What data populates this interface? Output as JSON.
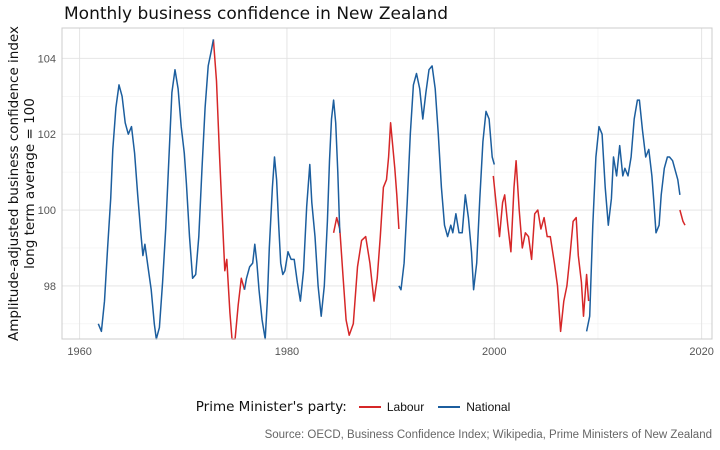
{
  "chart_data": {
    "type": "line",
    "title": "Monthly business confidence in New Zealand",
    "ylabel_lines": [
      "Amplitude-adjusted business confidence index",
      "long term average = 100"
    ],
    "xlabel": "",
    "xlim": [
      1958.3,
      2021.0
    ],
    "ylim": [
      96.6,
      104.8
    ],
    "x_ticks": [
      1960,
      1980,
      2000,
      2020
    ],
    "y_ticks": [
      98,
      100,
      102,
      104
    ],
    "grid": true,
    "legend": {
      "title": "Prime Minister's party:",
      "position": "bottom"
    },
    "caption": "Source: OECD, Business Confidence Index; Wikipedia, Prime Ministers of New Zealand",
    "series": [
      {
        "name": "Labour",
        "color": "#d62728",
        "segments": [
          [
            [
              1972.9,
              104.5
            ],
            [
              1973.2,
              103.4
            ],
            [
              1973.5,
              101.4
            ],
            [
              1973.8,
              99.6
            ],
            [
              1974.0,
              98.4
            ],
            [
              1974.2,
              98.7
            ],
            [
              1974.3,
              98.2
            ],
            [
              1974.5,
              97.3
            ],
            [
              1974.7,
              96.6
            ],
            [
              1975.0,
              96.6
            ],
            [
              1975.3,
              97.5
            ],
            [
              1975.6,
              98.2
            ],
            [
              1975.9,
              97.9
            ]
          ],
          [
            [
              1984.5,
              99.4
            ],
            [
              1984.8,
              99.8
            ],
            [
              1985.1,
              99.5
            ],
            [
              1985.4,
              98.3
            ],
            [
              1985.7,
              97.1
            ],
            [
              1986.0,
              96.7
            ],
            [
              1986.4,
              97.0
            ],
            [
              1986.8,
              98.5
            ],
            [
              1987.2,
              99.2
            ],
            [
              1987.6,
              99.3
            ],
            [
              1988.0,
              98.6
            ],
            [
              1988.4,
              97.6
            ],
            [
              1988.7,
              98.2
            ],
            [
              1989.0,
              99.3
            ],
            [
              1989.3,
              100.6
            ],
            [
              1989.6,
              100.8
            ],
            [
              1989.8,
              101.4
            ],
            [
              1990.0,
              102.3
            ],
            [
              1990.2,
              101.7
            ],
            [
              1990.4,
              101.1
            ],
            [
              1990.6,
              100.4
            ],
            [
              1990.8,
              99.5
            ]
          ],
          [
            [
              1999.9,
              100.9
            ],
            [
              2000.2,
              100.1
            ],
            [
              2000.5,
              99.3
            ],
            [
              2000.8,
              100.2
            ],
            [
              2001.0,
              100.4
            ],
            [
              2001.3,
              99.6
            ],
            [
              2001.6,
              98.9
            ],
            [
              2001.9,
              100.6
            ],
            [
              2002.1,
              101.3
            ],
            [
              2002.4,
              100.0
            ],
            [
              2002.7,
              99.0
            ],
            [
              2003.0,
              99.4
            ],
            [
              2003.3,
              99.3
            ],
            [
              2003.6,
              98.7
            ],
            [
              2003.9,
              99.9
            ],
            [
              2004.2,
              100.0
            ],
            [
              2004.5,
              99.5
            ],
            [
              2004.8,
              99.8
            ],
            [
              2005.1,
              99.3
            ],
            [
              2005.4,
              99.3
            ],
            [
              2005.8,
              98.6
            ],
            [
              2006.1,
              98.0
            ],
            [
              2006.4,
              96.8
            ],
            [
              2006.7,
              97.6
            ],
            [
              2007.0,
              98.0
            ],
            [
              2007.3,
              98.8
            ],
            [
              2007.6,
              99.7
            ],
            [
              2007.9,
              99.8
            ],
            [
              2008.1,
              98.8
            ],
            [
              2008.4,
              98.1
            ],
            [
              2008.6,
              97.2
            ],
            [
              2008.9,
              98.3
            ],
            [
              2009.1,
              97.6
            ]
          ],
          [
            [
              2017.9,
              100.0
            ],
            [
              2018.2,
              99.7
            ],
            [
              2018.4,
              99.6
            ]
          ]
        ]
      },
      {
        "name": "National",
        "color": "#1c5e9e",
        "segments": [
          [
            [
              1961.8,
              97.0
            ],
            [
              1962.1,
              96.8
            ],
            [
              1962.4,
              97.6
            ],
            [
              1962.7,
              99.0
            ],
            [
              1963.0,
              100.3
            ],
            [
              1963.2,
              101.6
            ],
            [
              1963.5,
              102.7
            ],
            [
              1963.8,
              103.3
            ],
            [
              1964.1,
              103.0
            ],
            [
              1964.4,
              102.3
            ],
            [
              1964.7,
              102.0
            ],
            [
              1965.0,
              102.2
            ],
            [
              1965.3,
              101.5
            ],
            [
              1965.6,
              100.4
            ],
            [
              1965.9,
              99.4
            ],
            [
              1966.1,
              98.8
            ],
            [
              1966.3,
              99.1
            ],
            [
              1966.6,
              98.5
            ],
            [
              1966.9,
              97.9
            ],
            [
              1967.2,
              97.0
            ],
            [
              1967.4,
              96.6
            ],
            [
              1967.7,
              96.9
            ],
            [
              1968.0,
              98.1
            ],
            [
              1968.3,
              99.5
            ],
            [
              1968.6,
              101.3
            ],
            [
              1968.9,
              103.1
            ],
            [
              1969.2,
              103.7
            ],
            [
              1969.5,
              103.2
            ],
            [
              1969.8,
              102.2
            ],
            [
              1970.1,
              101.5
            ],
            [
              1970.3,
              100.7
            ],
            [
              1970.6,
              99.3
            ],
            [
              1970.9,
              98.2
            ],
            [
              1971.2,
              98.3
            ],
            [
              1971.5,
              99.3
            ],
            [
              1971.8,
              101.1
            ],
            [
              1972.1,
              102.7
            ],
            [
              1972.4,
              103.8
            ],
            [
              1972.7,
              104.2
            ],
            [
              1972.9,
              104.5
            ]
          ],
          [
            [
              1975.9,
              97.9
            ],
            [
              1976.1,
              98.2
            ],
            [
              1976.4,
              98.5
            ],
            [
              1976.7,
              98.6
            ],
            [
              1976.9,
              99.1
            ],
            [
              1977.1,
              98.6
            ],
            [
              1977.3,
              97.9
            ],
            [
              1977.6,
              97.1
            ],
            [
              1977.9,
              96.6
            ],
            [
              1978.1,
              97.6
            ],
            [
              1978.3,
              99.0
            ],
            [
              1978.6,
              100.6
            ],
            [
              1978.8,
              101.4
            ],
            [
              1979.0,
              100.8
            ],
            [
              1979.2,
              99.6
            ],
            [
              1979.4,
              98.6
            ],
            [
              1979.6,
              98.3
            ],
            [
              1979.8,
              98.4
            ],
            [
              1980.1,
              98.9
            ],
            [
              1980.4,
              98.7
            ],
            [
              1980.7,
              98.7
            ],
            [
              1981.0,
              98.1
            ],
            [
              1981.3,
              97.6
            ],
            [
              1981.6,
              98.4
            ],
            [
              1981.9,
              100.1
            ],
            [
              1982.2,
              101.2
            ],
            [
              1982.4,
              100.2
            ],
            [
              1982.7,
              99.3
            ],
            [
              1983.0,
              98.0
            ],
            [
              1983.3,
              97.2
            ],
            [
              1983.6,
              98.0
            ],
            [
              1983.9,
              99.7
            ],
            [
              1984.1,
              101.3
            ],
            [
              1984.3,
              102.4
            ],
            [
              1984.5,
              102.9
            ],
            [
              1984.7,
              102.3
            ],
            [
              1984.9,
              101.0
            ],
            [
              1985.1,
              99.4
            ]
          ],
          [
            [
              1990.8,
              98.0
            ],
            [
              1991.0,
              97.9
            ],
            [
              1991.3,
              98.6
            ],
            [
              1991.6,
              100.2
            ],
            [
              1991.9,
              102.0
            ],
            [
              1992.2,
              103.3
            ],
            [
              1992.5,
              103.6
            ],
            [
              1992.8,
              103.2
            ],
            [
              1993.1,
              102.4
            ],
            [
              1993.4,
              103.1
            ],
            [
              1993.7,
              103.7
            ],
            [
              1994.0,
              103.8
            ],
            [
              1994.3,
              103.2
            ],
            [
              1994.6,
              102.0
            ],
            [
              1994.9,
              100.6
            ],
            [
              1995.2,
              99.6
            ],
            [
              1995.5,
              99.3
            ],
            [
              1995.8,
              99.6
            ],
            [
              1996.0,
              99.4
            ],
            [
              1996.3,
              99.9
            ],
            [
              1996.6,
              99.4
            ],
            [
              1996.9,
              99.4
            ],
            [
              1997.2,
              100.4
            ],
            [
              1997.5,
              99.8
            ],
            [
              1997.8,
              98.9
            ],
            [
              1998.0,
              97.9
            ],
            [
              1998.3,
              98.6
            ],
            [
              1998.6,
              100.3
            ],
            [
              1998.9,
              101.8
            ],
            [
              1999.2,
              102.6
            ],
            [
              1999.5,
              102.4
            ],
            [
              1999.8,
              101.4
            ],
            [
              2000.0,
              101.2
            ]
          ],
          [
            [
              2008.9,
              96.8
            ],
            [
              2009.2,
              97.2
            ],
            [
              2009.5,
              99.6
            ],
            [
              2009.8,
              101.4
            ],
            [
              2010.1,
              102.2
            ],
            [
              2010.4,
              102.0
            ],
            [
              2010.7,
              100.6
            ],
            [
              2011.0,
              99.6
            ],
            [
              2011.3,
              100.3
            ],
            [
              2011.5,
              101.4
            ],
            [
              2011.8,
              100.9
            ],
            [
              2012.1,
              101.7
            ],
            [
              2012.4,
              100.9
            ],
            [
              2012.6,
              101.1
            ],
            [
              2012.9,
              100.9
            ],
            [
              2013.2,
              101.4
            ],
            [
              2013.5,
              102.4
            ],
            [
              2013.8,
              102.9
            ],
            [
              2014.0,
              102.9
            ],
            [
              2014.3,
              102.1
            ],
            [
              2014.6,
              101.4
            ],
            [
              2014.9,
              101.6
            ],
            [
              2015.2,
              100.9
            ],
            [
              2015.4,
              100.2
            ],
            [
              2015.6,
              99.4
            ],
            [
              2015.9,
              99.6
            ],
            [
              2016.1,
              100.4
            ],
            [
              2016.4,
              101.1
            ],
            [
              2016.7,
              101.4
            ],
            [
              2016.9,
              101.4
            ],
            [
              2017.2,
              101.3
            ],
            [
              2017.5,
              101.0
            ],
            [
              2017.7,
              100.8
            ],
            [
              2017.9,
              100.4
            ]
          ]
        ]
      }
    ]
  }
}
